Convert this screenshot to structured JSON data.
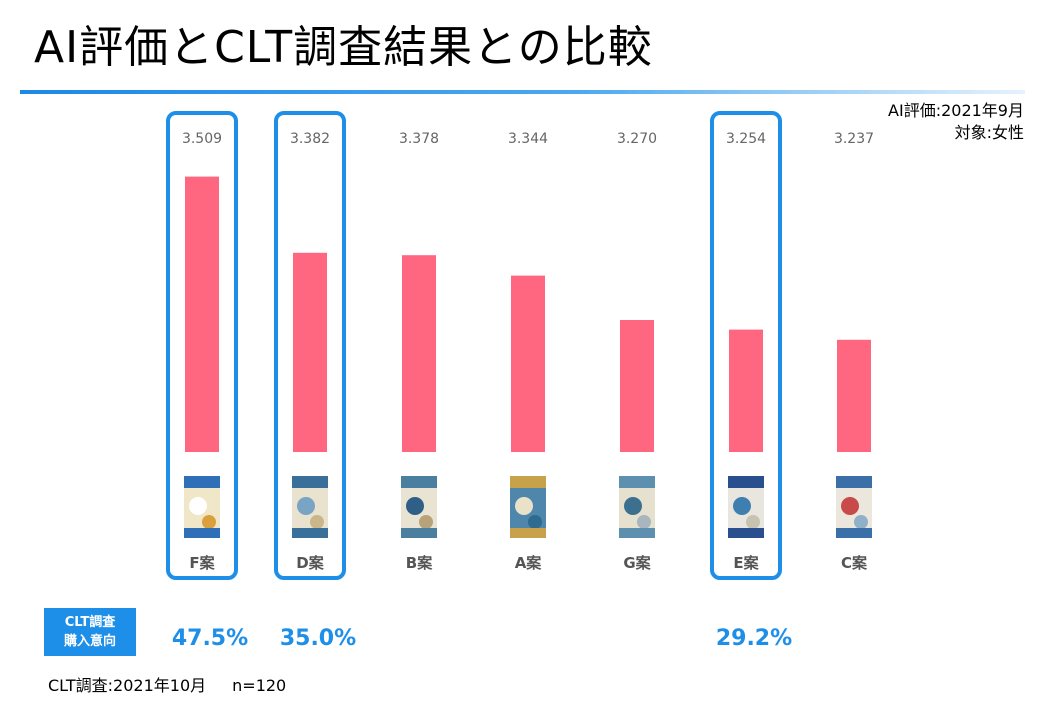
{
  "slide": {
    "title": "AI評価とCLT調査結果との比較",
    "meta": {
      "ai_eval": "AI評価:2021年9月",
      "target": "対象:女性"
    },
    "clt_badge": [
      "CLT調査",
      "購入意向"
    ],
    "clt_note": {
      "survey": "CLT調査:2021年10月",
      "n": "n=120"
    }
  },
  "colors": {
    "bar": "#ff6680",
    "highlight": "#1e8fe8",
    "value_text": "#666666",
    "pct_text": "#1e8fe8"
  },
  "chart_data": {
    "type": "bar",
    "categories": [
      "F案",
      "D案",
      "B案",
      "A案",
      "G案",
      "E案",
      "C案"
    ],
    "values": [
      3.509,
      3.382,
      3.378,
      3.344,
      3.27,
      3.254,
      3.237
    ],
    "value_labels": [
      "3.509",
      "3.382",
      "3.378",
      "3.344",
      "3.270",
      "3.254",
      "3.237"
    ],
    "highlighted": [
      true,
      true,
      false,
      false,
      false,
      true,
      false
    ],
    "clt_purchase_intent": [
      "47.5%",
      "35.0%",
      "",
      "",
      "",
      "29.2%",
      ""
    ],
    "ylim": [
      3.05,
      3.54
    ],
    "title": "",
    "xlabel": "",
    "ylabel": "",
    "grid": false,
    "legend": "none"
  }
}
